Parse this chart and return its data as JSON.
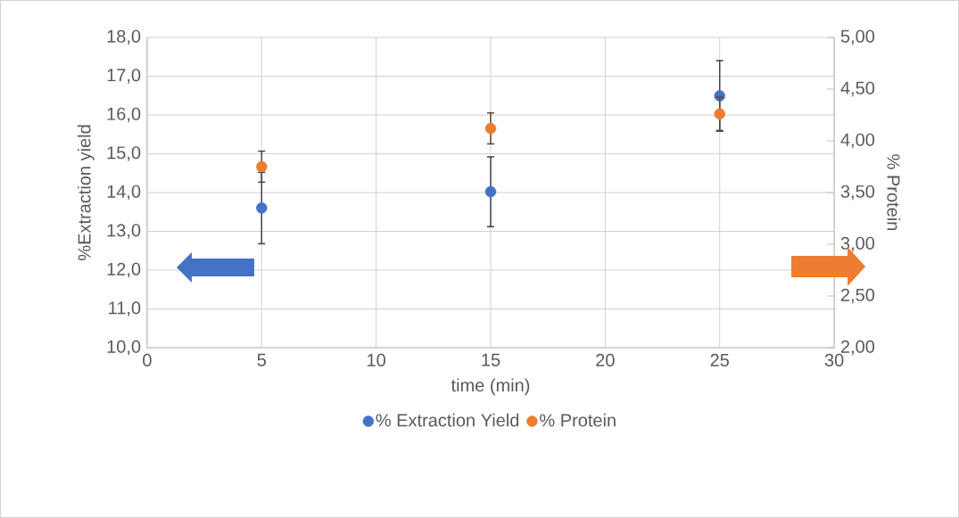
{
  "chart_data": {
    "type": "scatter",
    "xlabel": "time (min)",
    "ylabel": "%Extraction yield",
    "y2label": "% Protein",
    "x": [
      5,
      15,
      25
    ],
    "series": [
      {
        "name": "% Extraction Yield",
        "color": "#4472c4",
        "values": [
          13.6,
          14.02,
          16.49
        ],
        "errors": [
          0.92,
          0.9,
          0.91
        ]
      },
      {
        "name": "% Protein",
        "color": "#ed7d31",
        "axis": "y2",
        "values": [
          3.75,
          4.12,
          4.26
        ],
        "errors": [
          0.15,
          0.15,
          0.16
        ]
      }
    ],
    "xlim": [
      0,
      30
    ],
    "xticks": [
      0,
      5,
      10,
      15,
      20,
      25,
      30
    ],
    "ylim": [
      10,
      18
    ],
    "yticks": [
      {
        "value": 10,
        "label": "10,0"
      },
      {
        "value": 11,
        "label": "11,0"
      },
      {
        "value": 12,
        "label": "12,0"
      },
      {
        "value": 13,
        "label": "13,0"
      },
      {
        "value": 14,
        "label": "14,0"
      },
      {
        "value": 15,
        "label": "15,0"
      },
      {
        "value": 16,
        "label": "16,0"
      },
      {
        "value": 17,
        "label": "17,0"
      },
      {
        "value": 18,
        "label": "18,0"
      }
    ],
    "y2lim": [
      2,
      5
    ],
    "y2ticks": [
      {
        "value": 2,
        "label": "2,00"
      },
      {
        "value": 2.5,
        "label": "2,50"
      },
      {
        "value": 3,
        "label": "3,00"
      },
      {
        "value": 3.5,
        "label": "3,50"
      },
      {
        "value": 4,
        "label": "4,00"
      },
      {
        "value": 4.5,
        "label": "4,50"
      },
      {
        "value": 5,
        "label": "5,00"
      }
    ],
    "grid": true,
    "legend": "bottom",
    "marker": "circle"
  }
}
